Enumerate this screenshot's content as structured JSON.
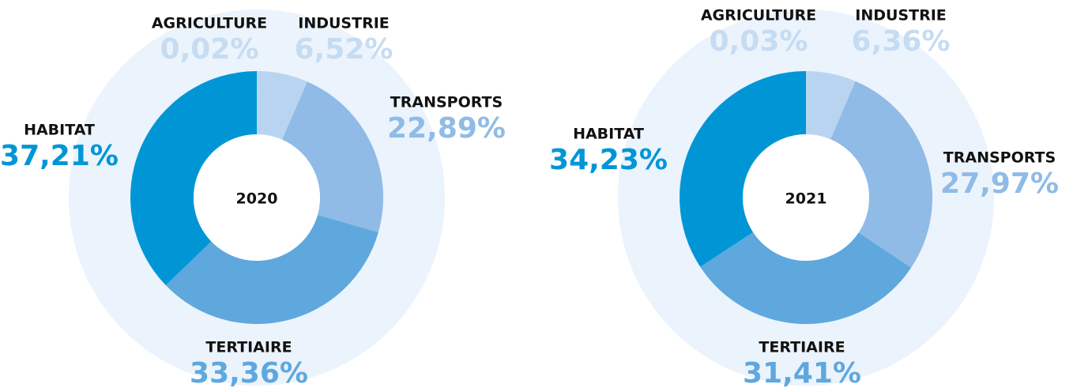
{
  "chart_data": [
    {
      "type": "pie",
      "title": "2020",
      "categories": [
        "AGRICULTURE",
        "INDUSTRIE",
        "TRANSPORTS",
        "TERTIAIRE",
        "HABITAT"
      ],
      "values": [
        0.02,
        6.52,
        22.89,
        33.36,
        37.21
      ],
      "value_labels": [
        "0,02%",
        "6,52%",
        "22,89%",
        "33,36%",
        "37,21%"
      ],
      "colors": [
        "#b8d4f0",
        "#b8d4f0",
        "#8fbbe6",
        "#5ea8de",
        "#0096d6"
      ]
    },
    {
      "type": "pie",
      "title": "2021",
      "categories": [
        "AGRICULTURE",
        "INDUSTRIE",
        "TRANSPORTS",
        "TERTIAIRE",
        "HABITAT"
      ],
      "values": [
        0.03,
        6.36,
        27.97,
        31.41,
        34.23
      ],
      "value_labels": [
        "0,03%",
        "6,36%",
        "27,97%",
        "31,41%",
        "34,23%"
      ],
      "colors": [
        "#b8d4f0",
        "#b8d4f0",
        "#8fbbe6",
        "#5ea8de",
        "#0096d6"
      ]
    }
  ]
}
